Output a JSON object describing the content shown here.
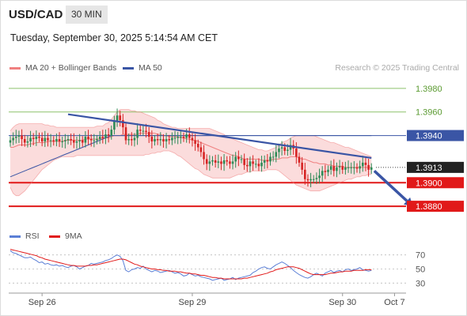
{
  "header": {
    "symbol": "USD/CAD",
    "timeframe": "30 MIN",
    "datetime": "Tuesday, September 30, 2025 5:14:54 AM CET",
    "credit": "Research © 2025 Trading Central"
  },
  "legend": {
    "ma20": "MA 20 + Bollinger Bands",
    "ma50": "MA 50",
    "rsi": "RSI",
    "ma9": "9MA"
  },
  "colors": {
    "bollinger": "#f08080",
    "band_fill": "#fbdcdc",
    "ma50": "#3a55a5",
    "resistance": "#8ec26b",
    "support": "#e11919",
    "candle_up": "#2e8b57",
    "candle_down": "#d62424",
    "trendline": "#3a55a5",
    "rsi": "#5b7fd6",
    "rsi_ma": "#e11919"
  },
  "chart_data": [
    {
      "type": "candlestick",
      "title": "USD/CAD",
      "timeframe": "30 MIN",
      "x_tick_labels": [
        "Sep 26",
        "Sep 29",
        "Sep 30",
        "Oct 7"
      ],
      "ylim": [
        1.3866,
        1.3996
      ],
      "current_price": 1.3913,
      "levels": [
        {
          "price": 1.398,
          "label": "1.3980",
          "kind": "resistance"
        },
        {
          "price": 1.396,
          "label": "1.3960",
          "kind": "resistance"
        },
        {
          "price": 1.394,
          "label": "1.3940",
          "kind": "pivot"
        },
        {
          "price": 1.3913,
          "label": "1.3913",
          "kind": "last"
        },
        {
          "price": 1.39,
          "label": "1.3900",
          "kind": "support"
        },
        {
          "price": 1.388,
          "label": "1.3880",
          "kind": "support"
        }
      ],
      "trendline": {
        "from": [
          20,
          1.3958
        ],
        "to": [
          125,
          1.3921
        ]
      },
      "forecast_arrow": {
        "from": [
          126,
          1.391
        ],
        "to": [
          136,
          1.388
        ]
      },
      "closes": [
        1.3936,
        1.3938,
        1.3939,
        1.394,
        1.3937,
        1.3934,
        1.3935,
        1.3938,
        1.3937,
        1.3939,
        1.3938,
        1.3935,
        1.3938,
        1.3936,
        1.3936,
        1.3935,
        1.3937,
        1.3935,
        1.3935,
        1.3936,
        1.3937,
        1.3936,
        1.3934,
        1.3935,
        1.3936,
        1.3934,
        1.3939,
        1.3937,
        1.3936,
        1.3936,
        1.3937,
        1.3939,
        1.3938,
        1.3941,
        1.394,
        1.3945,
        1.3952,
        1.3957,
        1.3953,
        1.3947,
        1.3936,
        1.3937,
        1.3936,
        1.3938,
        1.3945,
        1.3944,
        1.3944,
        1.3943,
        1.3939,
        1.3935,
        1.3937,
        1.3936,
        1.3937,
        1.3935,
        1.3937,
        1.3936,
        1.3938,
        1.3938,
        1.3939,
        1.3939,
        1.3938,
        1.3941,
        1.3938,
        1.3936,
        1.3933,
        1.393,
        1.3926,
        1.392,
        1.3916,
        1.3918,
        1.3919,
        1.3917,
        1.3918,
        1.3916,
        1.3919,
        1.3918,
        1.3916,
        1.3918,
        1.3922,
        1.392,
        1.392,
        1.3915,
        1.3914,
        1.3918,
        1.3916,
        1.3916,
        1.3914,
        1.3917,
        1.3919,
        1.3918,
        1.3922,
        1.3922,
        1.3926,
        1.3929,
        1.393,
        1.3927,
        1.3928,
        1.3932,
        1.3929,
        1.3922,
        1.3917,
        1.3911,
        1.3903,
        1.3902,
        1.3903,
        1.3903,
        1.3904,
        1.3906,
        1.391,
        1.3909,
        1.3911,
        1.3914,
        1.391,
        1.3913,
        1.3914,
        1.3911,
        1.3913,
        1.3913,
        1.3913,
        1.3913,
        1.3912,
        1.3914,
        1.3917,
        1.3915,
        1.3911,
        1.3913
      ],
      "ma20": [
        1.393,
        1.393,
        1.3931,
        1.3932,
        1.3932,
        1.3932,
        1.3932,
        1.3933,
        1.3933,
        1.3934,
        1.3934,
        1.3934,
        1.3934,
        1.3935,
        1.3935,
        1.3935,
        1.3935,
        1.3935,
        1.3935,
        1.3936,
        1.3936,
        1.3936,
        1.3936,
        1.3936,
        1.3936,
        1.3936,
        1.3937,
        1.3937,
        1.3937,
        1.3937,
        1.3937,
        1.3937,
        1.3938,
        1.3938,
        1.3938,
        1.3939,
        1.394,
        1.394,
        1.394,
        1.3941,
        1.3941,
        1.3941,
        1.3941,
        1.3941,
        1.3941,
        1.3942,
        1.3942,
        1.3942,
        1.3942,
        1.3942,
        1.3942,
        1.3941,
        1.3941,
        1.394,
        1.394,
        1.3939,
        1.3939,
        1.3939,
        1.3939,
        1.3938,
        1.3938,
        1.3937,
        1.3937,
        1.3936,
        1.3936,
        1.3935,
        1.3934,
        1.3933,
        1.3932,
        1.3931,
        1.393,
        1.3929,
        1.3928,
        1.3927,
        1.3926,
        1.3925,
        1.3924,
        1.3923,
        1.3923,
        1.3922,
        1.3921,
        1.392,
        1.392,
        1.392,
        1.392,
        1.392,
        1.392,
        1.3919,
        1.3919,
        1.3919,
        1.3919,
        1.392,
        1.392,
        1.392,
        1.3921,
        1.3921,
        1.3921,
        1.3922,
        1.3922,
        1.3922,
        1.3921,
        1.392,
        1.392,
        1.3919,
        1.3918,
        1.3917,
        1.3917,
        1.3916,
        1.3916,
        1.3916,
        1.3915,
        1.3915,
        1.3914,
        1.3914,
        1.3914,
        1.3914,
        1.3913,
        1.3913,
        1.3913,
        1.3913,
        1.3913,
        1.3913,
        1.3913,
        1.3913,
        1.3913,
        1.3913
      ],
      "ma50": [
        1.3905,
        1.3906,
        1.3907,
        1.3908,
        1.3909,
        1.391,
        1.3911,
        1.3912,
        1.3913,
        1.3914,
        1.3915,
        1.3916,
        1.3917,
        1.3918,
        1.3919,
        1.392,
        1.3921,
        1.3922,
        1.3923,
        1.3924,
        1.3925,
        1.3926,
        1.3927,
        1.3928,
        1.3929,
        1.393,
        1.3931,
        1.3932,
        1.3933,
        1.3934,
        1.3935,
        1.3936,
        1.3937,
        1.3938,
        1.3939,
        1.394,
        1.394,
        1.394,
        1.394,
        1.394,
        1.394,
        1.394,
        1.394,
        1.394,
        1.394,
        1.394,
        1.394,
        1.394,
        1.394,
        1.394,
        1.394,
        1.394,
        1.394,
        1.394,
        1.394,
        1.394,
        1.394,
        1.394,
        1.394,
        1.394,
        1.394,
        1.394,
        1.394,
        1.394,
        1.394,
        1.394,
        1.394,
        1.394,
        1.394,
        1.394,
        1.394,
        1.394,
        1.394,
        1.394,
        1.394,
        1.394,
        1.394,
        1.394,
        1.394,
        1.394,
        1.394,
        1.394,
        1.394,
        1.394,
        1.394,
        1.394,
        1.394,
        1.394,
        1.394,
        1.394,
        1.394,
        1.394,
        1.394,
        1.394,
        1.394,
        1.394,
        1.394,
        1.394,
        1.394,
        1.394,
        1.394,
        1.394,
        1.394,
        1.394,
        1.394,
        1.394,
        1.394,
        1.394,
        1.394,
        1.394,
        1.394,
        1.394,
        1.394,
        1.394,
        1.394,
        1.394,
        1.394,
        1.394,
        1.394,
        1.394,
        1.394,
        1.394,
        1.394,
        1.394,
        1.394,
        1.394
      ],
      "bb_upper": [
        1.3944,
        1.3947,
        1.3949,
        1.395,
        1.395,
        1.395,
        1.395,
        1.395,
        1.395,
        1.395,
        1.395,
        1.395,
        1.3949,
        1.3949,
        1.3948,
        1.3948,
        1.3947,
        1.3947,
        1.3947,
        1.3947,
        1.3947,
        1.3947,
        1.3947,
        1.3947,
        1.3947,
        1.3947,
        1.3947,
        1.3947,
        1.3947,
        1.3947,
        1.3948,
        1.3948,
        1.3948,
        1.395,
        1.3951,
        1.3954,
        1.3957,
        1.396,
        1.3962,
        1.3962,
        1.3962,
        1.3962,
        1.3961,
        1.3961,
        1.396,
        1.396,
        1.3959,
        1.3958,
        1.3957,
        1.3956,
        1.3955,
        1.3953,
        1.3952,
        1.395,
        1.3949,
        1.3948,
        1.3947,
        1.3947,
        1.3946,
        1.3946,
        1.3946,
        1.3946,
        1.3946,
        1.3946,
        1.3946,
        1.3946,
        1.3946,
        1.3946,
        1.3946,
        1.3946,
        1.3945,
        1.3944,
        1.3943,
        1.3942,
        1.3941,
        1.3939,
        1.3938,
        1.3937,
        1.3936,
        1.3935,
        1.3934,
        1.3933,
        1.3932,
        1.3931,
        1.393,
        1.3929,
        1.3928,
        1.3928,
        1.3927,
        1.3927,
        1.3928,
        1.3929,
        1.393,
        1.3932,
        1.3934,
        1.3935,
        1.3936,
        1.3938,
        1.3939,
        1.394,
        1.394,
        1.394,
        1.394,
        1.394,
        1.394,
        1.394,
        1.3939,
        1.3938,
        1.3937,
        1.3936,
        1.3935,
        1.3934,
        1.3934,
        1.3933,
        1.3932,
        1.3931,
        1.393,
        1.393,
        1.3929,
        1.3928,
        1.3927,
        1.3926,
        1.3925,
        1.3924,
        1.3923,
        1.3922
      ],
      "bb_lower": [
        1.3896,
        1.3891,
        1.3889,
        1.3889,
        1.3891,
        1.3893,
        1.3896,
        1.3899,
        1.3902,
        1.3905,
        1.3908,
        1.3911,
        1.3913,
        1.3915,
        1.3917,
        1.3919,
        1.392,
        1.3921,
        1.3922,
        1.3922,
        1.3922,
        1.3922,
        1.3922,
        1.3923,
        1.3923,
        1.3923,
        1.3923,
        1.3923,
        1.3923,
        1.3923,
        1.3923,
        1.3923,
        1.3923,
        1.3923,
        1.3923,
        1.3923,
        1.3923,
        1.3923,
        1.3923,
        1.3923,
        1.3923,
        1.3923,
        1.3923,
        1.3923,
        1.3923,
        1.3923,
        1.3923,
        1.3924,
        1.3924,
        1.3925,
        1.3925,
        1.3926,
        1.3926,
        1.3927,
        1.3927,
        1.3927,
        1.3926,
        1.3925,
        1.3923,
        1.3922,
        1.392,
        1.3918,
        1.3916,
        1.3914,
        1.3912,
        1.3911,
        1.3909,
        1.3907,
        1.3906,
        1.3905,
        1.3904,
        1.3904,
        1.3904,
        1.3904,
        1.3904,
        1.3904,
        1.3904,
        1.3905,
        1.3906,
        1.3907,
        1.3907,
        1.3908,
        1.3909,
        1.3909,
        1.391,
        1.391,
        1.391,
        1.391,
        1.391,
        1.3911,
        1.3911,
        1.3911,
        1.3911,
        1.391,
        1.3908,
        1.3906,
        1.3904,
        1.3902,
        1.39,
        1.3898,
        1.3897,
        1.3896,
        1.3895,
        1.3894,
        1.3893,
        1.3893,
        1.3893,
        1.3893,
        1.3894,
        1.3895,
        1.3896,
        1.3897,
        1.3898,
        1.3899,
        1.39,
        1.3901,
        1.3902,
        1.3903,
        1.3903,
        1.3904,
        1.3905,
        1.3905,
        1.3906,
        1.3906,
        1.3907,
        1.3907
      ]
    },
    {
      "type": "line",
      "title": "RSI",
      "ylim": [
        18,
        82
      ],
      "y_ticks": [
        70,
        50,
        30
      ],
      "series": [
        {
          "name": "RSI",
          "values": [
            76,
            73,
            72,
            70,
            68,
            66,
            66,
            67,
            64,
            62,
            59,
            60,
            57,
            58,
            56,
            55,
            56,
            54,
            55,
            53,
            52,
            54,
            55,
            53,
            50,
            52,
            54,
            55,
            58,
            57,
            58,
            59,
            60,
            62,
            63,
            65,
            68,
            70,
            68,
            62,
            48,
            46,
            49,
            50,
            52,
            51,
            54,
            50,
            48,
            46,
            48,
            47,
            45,
            46,
            47,
            48,
            46,
            44,
            45,
            43,
            40,
            41,
            44,
            42,
            40,
            41,
            39,
            38,
            37,
            36,
            34,
            35,
            36,
            37,
            34,
            35,
            36,
            38,
            35,
            37,
            38,
            39,
            40,
            41,
            45,
            47,
            50,
            52,
            53,
            51,
            50,
            53,
            56,
            58,
            60,
            58,
            55,
            52,
            48,
            45,
            42,
            40,
            38,
            37,
            39,
            42,
            44,
            42,
            40,
            44,
            46,
            48,
            45,
            47,
            48,
            46,
            49,
            50,
            48,
            49,
            50,
            52,
            49,
            48,
            47,
            48
          ]
        },
        {
          "name": "9MA",
          "values": [
            78,
            77,
            76,
            75,
            74,
            73,
            72,
            71,
            70,
            69,
            67,
            66,
            64,
            63,
            62,
            61,
            60,
            59,
            58,
            57,
            56,
            55,
            55,
            54,
            54,
            54,
            54,
            55,
            55,
            56,
            56,
            57,
            58,
            59,
            60,
            61,
            62,
            63,
            64,
            64,
            63,
            61,
            59,
            57,
            56,
            54,
            53,
            52,
            51,
            50,
            50,
            49,
            49,
            48,
            48,
            47,
            47,
            47,
            46,
            46,
            45,
            44,
            44,
            43,
            43,
            42,
            41,
            41,
            40,
            39,
            38,
            38,
            37,
            37,
            36,
            36,
            36,
            36,
            36,
            36,
            36,
            37,
            37,
            38,
            39,
            40,
            41,
            42,
            43,
            44,
            46,
            47,
            49,
            50,
            51,
            52,
            53,
            53,
            53,
            52,
            51,
            49,
            47,
            45,
            43,
            42,
            42,
            42,
            42,
            42,
            43,
            44,
            44,
            45,
            46,
            46,
            47,
            47,
            47,
            48,
            48,
            48,
            48,
            49,
            49,
            49
          ]
        }
      ]
    }
  ]
}
